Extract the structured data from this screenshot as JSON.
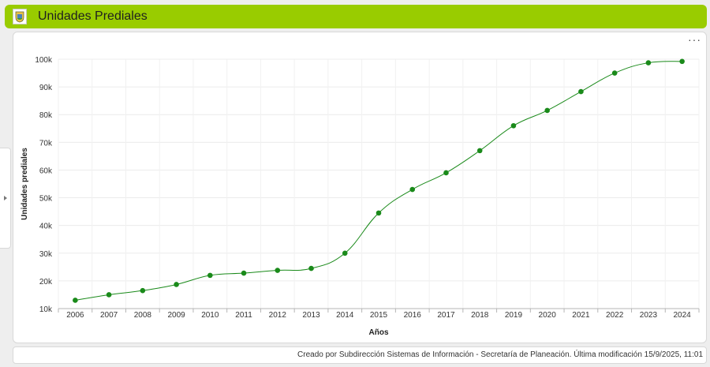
{
  "header": {
    "title": "Unidades Prediales",
    "logo_icon": "coat-of-arms-icon",
    "background_color": "#99cc00"
  },
  "panel": {
    "menu_label": "···"
  },
  "footer": {
    "text": "Creado por Subdirección Sistemas de Información - Secretaría de Planeación. Última modificación 15/9/2025, 11:01"
  },
  "chart_data": {
    "type": "line",
    "title": "",
    "xlabel": "Años",
    "ylabel": "Unidades prediales",
    "x": [
      "2006",
      "2007",
      "2008",
      "2009",
      "2010",
      "2011",
      "2012",
      "2013",
      "2014",
      "2015",
      "2016",
      "2017",
      "2018",
      "2019",
      "2020",
      "2021",
      "2022",
      "2023",
      "2024"
    ],
    "series": [
      {
        "values": [
          13000,
          15000,
          16500,
          18700,
          22000,
          22800,
          23800,
          24500,
          30000,
          44500,
          53000,
          59000,
          67000,
          76000,
          81500,
          88300,
          95000,
          98700,
          99200
        ],
        "color": "#1a8a1a"
      }
    ],
    "ylim": [
      10000,
      100000
    ],
    "yticks": [
      10000,
      20000,
      30000,
      40000,
      50000,
      60000,
      70000,
      80000,
      90000,
      100000
    ],
    "ytick_labels": [
      "10k",
      "20k",
      "30k",
      "40k",
      "50k",
      "60k",
      "70k",
      "80k",
      "90k",
      "100k"
    ],
    "grid": true,
    "legend": "none"
  }
}
